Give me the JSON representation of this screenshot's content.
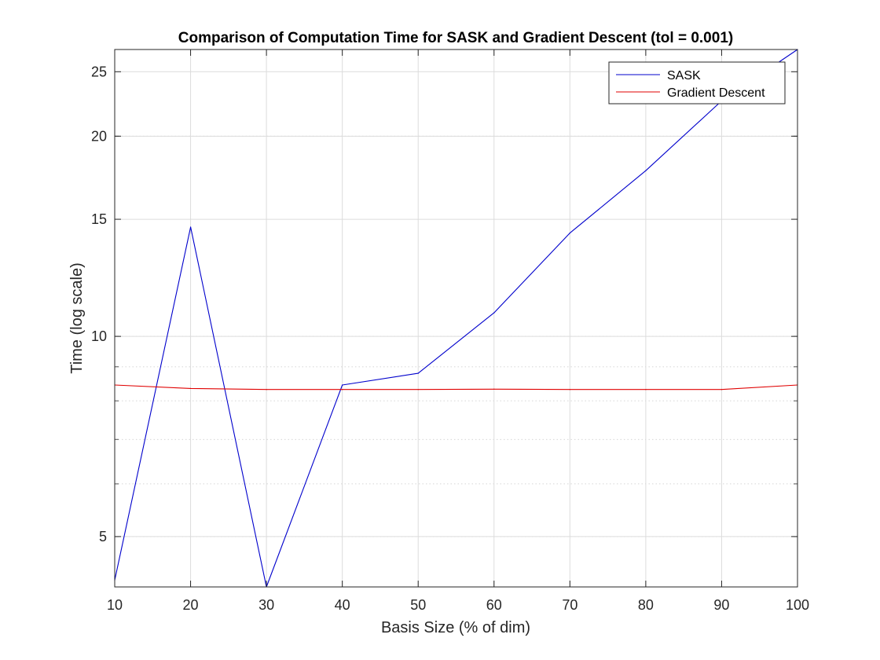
{
  "chart_data": {
    "type": "line",
    "title": "Comparison of Computation Time for SASK and Gradient Descent (tol = 0.001)",
    "xlabel": "Basis Size (% of dim)",
    "ylabel": "Time (log scale)",
    "x": [
      10,
      20,
      30,
      40,
      50,
      60,
      70,
      80,
      90,
      100
    ],
    "xlim": [
      10,
      100
    ],
    "ylim": [
      4.2,
      27
    ],
    "yscale": "log",
    "xticks": [
      "10",
      "20",
      "30",
      "40",
      "50",
      "60",
      "70",
      "80",
      "90",
      "100"
    ],
    "yticks": [
      "5",
      "10",
      "15",
      "20",
      "25"
    ],
    "ytick_values": [
      5,
      10,
      15,
      20,
      25
    ],
    "grid": true,
    "minor_grid": true,
    "legend_position": "top-right",
    "series": [
      {
        "name": "SASK",
        "color": "#0000cc",
        "values": [
          4.3,
          14.6,
          4.2,
          8.45,
          8.8,
          10.85,
          14.3,
          17.75,
          22.6,
          27.0
        ]
      },
      {
        "name": "Gradient Descent",
        "color": "#e00000",
        "values": [
          8.45,
          8.35,
          8.32,
          8.32,
          8.32,
          8.33,
          8.32,
          8.32,
          8.32,
          8.45
        ]
      }
    ]
  }
}
